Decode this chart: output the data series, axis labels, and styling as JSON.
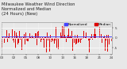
{
  "title_line1": "Milwaukee Weather Wind Direction",
  "title_line2": "Normalized and Median",
  "title_line3": "(24 Hours) (New)",
  "background_color": "#e8e8e8",
  "plot_bg_color": "#e8e8e8",
  "bar_color": "#dd0000",
  "line_color": "#4444ff",
  "grid_color": "#ffffff",
  "legend_labels": [
    "Normalized",
    "Median"
  ],
  "legend_colors": [
    "#4444ff",
    "#dd0000"
  ],
  "n_points": 288,
  "ylim": [
    -1.6,
    1.6
  ],
  "ytick_vals": [
    1.0,
    0.0,
    -1.0
  ],
  "ytick_labels": [
    "5",
    "0",
    "-5"
  ],
  "title_fontsize": 3.8,
  "legend_fontsize": 3.2,
  "tick_fontsize": 3.0,
  "n_xticks": 10,
  "median_value": 0.12
}
